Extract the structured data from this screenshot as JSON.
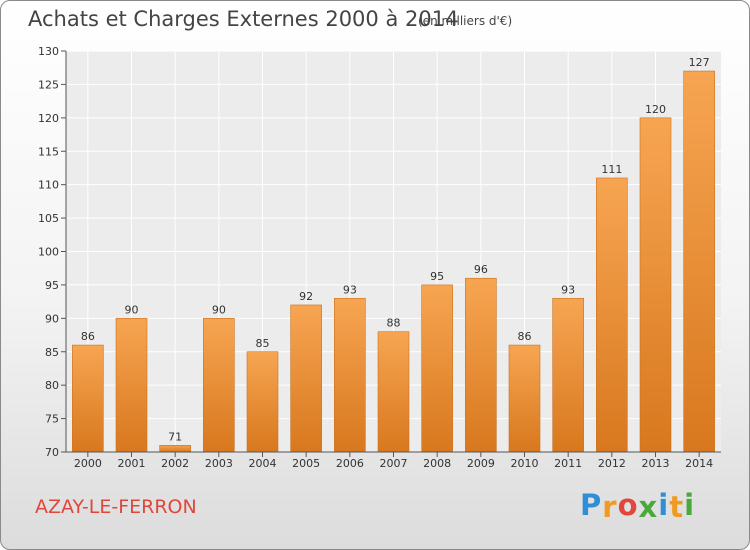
{
  "chart_data": {
    "type": "bar",
    "title": "Achats et Charges Externes 2000 à 2014",
    "subtitle": "(en milliers d'€)",
    "categories": [
      "2000",
      "2001",
      "2002",
      "2003",
      "2004",
      "2005",
      "2006",
      "2007",
      "2008",
      "2009",
      "2010",
      "2011",
      "2012",
      "2013",
      "2014"
    ],
    "values": [
      86,
      90,
      71,
      90,
      85,
      92,
      93,
      88,
      95,
      96,
      86,
      93,
      111,
      120,
      127
    ],
    "ylim": [
      70,
      130
    ],
    "yticks": [
      70,
      75,
      80,
      85,
      90,
      95,
      100,
      105,
      110,
      115,
      120,
      125,
      130
    ],
    "grid": true,
    "bar_color_light": "#f7a552",
    "bar_color_dark": "#d8781e"
  },
  "footer": {
    "place": "AZAY-LE-FERRON",
    "logo_letters": [
      "P",
      "r",
      "o",
      "x",
      "i",
      "t",
      "i"
    ],
    "logo_colors": [
      "#2f8fd6",
      "#f29a1f",
      "#e0463a",
      "#49a93a",
      "#2f8fd6",
      "#f29a1f",
      "#49a93a"
    ]
  }
}
